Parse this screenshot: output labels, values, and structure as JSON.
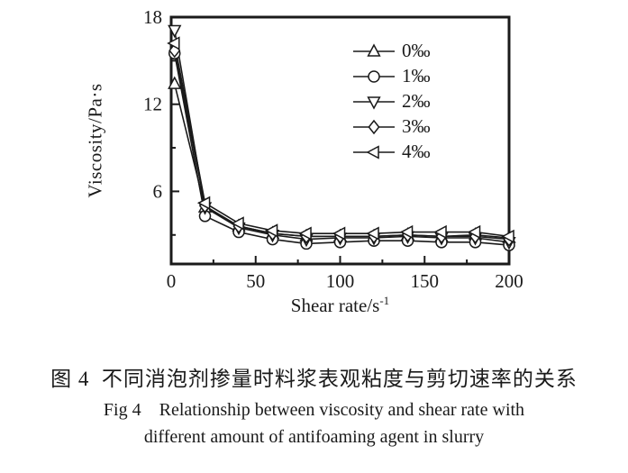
{
  "figure": {
    "caption_zh": "图 4  不同消泡剂掺量时料浆表观粘度与剪切速率的关系",
    "caption_en_line1": "Fig 4    Relationship between viscosity and shear rate with",
    "caption_en_line2": "different amount of antifoaming agent in slurry"
  },
  "colors": {
    "ink": "#1a1a1a",
    "background": "#ffffff",
    "marker_fill": "#ffffff"
  },
  "chart_data": {
    "type": "line",
    "title": "",
    "xlabel": "Shear rate/s",
    "xlabel_superscript": "-1",
    "ylabel": "Viscosity/Pa·s",
    "xlim": [
      0,
      200
    ],
    "ylim": [
      1,
      18
    ],
    "x_major_ticks": [
      0,
      50,
      100,
      150,
      200
    ],
    "x_minor_ticks": [
      25,
      75,
      125,
      175
    ],
    "y_major_ticks": [
      6,
      12,
      18
    ],
    "y_minor_ticks": [
      3,
      9,
      15
    ],
    "grid": false,
    "legend_position": "upper-right-inside",
    "x": [
      2,
      20,
      40,
      60,
      80,
      100,
      120,
      140,
      160,
      180,
      200
    ],
    "series": [
      {
        "name": "0‰",
        "marker": "triangle-up",
        "values": [
          13.4,
          4.9,
          3.6,
          3.1,
          2.9,
          2.9,
          2.9,
          3.0,
          2.9,
          3.0,
          2.8
        ]
      },
      {
        "name": "1‰",
        "marker": "circle",
        "values": [
          15.5,
          4.3,
          3.2,
          2.7,
          2.4,
          2.5,
          2.6,
          2.6,
          2.5,
          2.5,
          2.3
        ]
      },
      {
        "name": "2‰",
        "marker": "triangle-down",
        "values": [
          17.1,
          4.9,
          3.5,
          3.0,
          2.7,
          2.8,
          2.8,
          2.9,
          2.8,
          2.8,
          2.5
        ]
      },
      {
        "name": "3‰",
        "marker": "diamond",
        "values": [
          15.7,
          5.0,
          3.6,
          3.1,
          2.9,
          2.9,
          2.9,
          3.0,
          2.9,
          2.9,
          2.7
        ]
      },
      {
        "name": "4‰",
        "marker": "triangle-left",
        "values": [
          16.2,
          5.2,
          3.8,
          3.3,
          3.1,
          3.1,
          3.1,
          3.2,
          3.2,
          3.2,
          2.9
        ]
      }
    ]
  }
}
